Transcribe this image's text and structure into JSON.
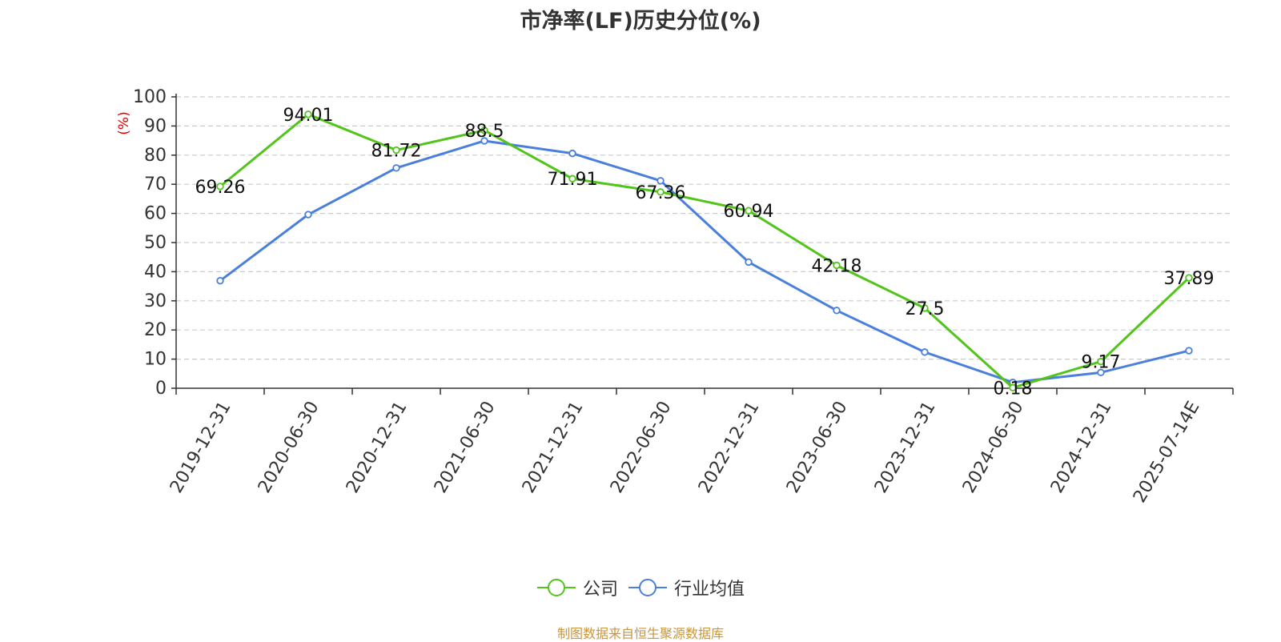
{
  "title": "市净率(LF)历史分位(%)",
  "source_note": "制图数据来自恒生聚源数据库",
  "colors": {
    "company": "#52c41a",
    "industry": "#4a7fdc",
    "source_note": "#c8963c",
    "unit": "#e00000",
    "grid": "#cccccc",
    "axis": "#333333"
  },
  "chart_data": {
    "type": "line",
    "title": "市净率(LF)历史分位(%)",
    "ylabel": "(%)",
    "ylim": [
      0,
      100
    ],
    "yticks": [
      "0",
      "10",
      "20",
      "30",
      "40",
      "50",
      "60",
      "70",
      "80",
      "90",
      "100"
    ],
    "grid": true,
    "legend_position": "bottom-center",
    "categories": [
      "2019-12-31",
      "2020-06-30",
      "2020-12-31",
      "2021-06-30",
      "2021-12-31",
      "2022-06-30",
      "2022-12-31",
      "2023-06-30",
      "2023-12-31",
      "2024-06-30",
      "2024-12-31",
      "2025-07-14E"
    ],
    "series": [
      {
        "name": "公司",
        "color": "#52c41a",
        "values": [
          69.26,
          94.01,
          81.72,
          88.5,
          71.91,
          67.36,
          60.94,
          42.18,
          27.5,
          0.18,
          9.17,
          37.89
        ],
        "labels": [
          "69.26",
          "94.01",
          "81.72",
          "88.5",
          "71.91",
          "67.36",
          "60.94",
          "42.18",
          "27.5",
          "0.18",
          "9.17",
          "37.89"
        ]
      },
      {
        "name": "行业均值",
        "color": "#4a7fdc",
        "values": [
          36.9,
          59.6,
          75.6,
          84.9,
          80.6,
          71.2,
          43.3,
          26.7,
          12.4,
          2.0,
          5.4,
          12.9
        ]
      }
    ]
  }
}
